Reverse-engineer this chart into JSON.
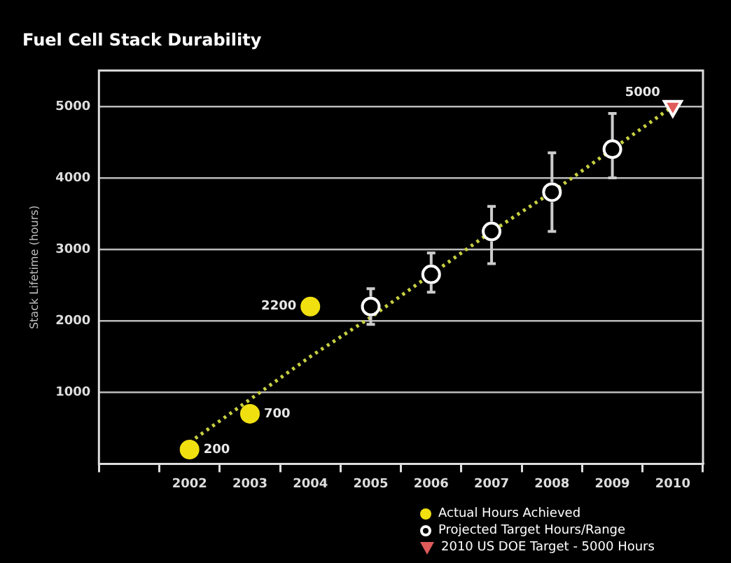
{
  "chart_data": {
    "type": "scatter",
    "title": "Fuel Cell Stack Durability",
    "ylabel": "Stack Lifetime (hours)",
    "categories": [
      null,
      "2002",
      "2003",
      "2004",
      "2005",
      "2006",
      "2007",
      "2008",
      "2009",
      "2010"
    ],
    "ylim": [
      0,
      5500
    ],
    "yticks": [
      1000,
      2000,
      3000,
      4000,
      5000
    ],
    "grid": "y",
    "legend": "bottom right",
    "series": [
      {
        "type": "line",
        "color": "#c8d040",
        "values": [
          null,
          300,
          900,
          1500,
          2050,
          2650,
          3250,
          3800,
          4400,
          5000
        ],
        "line_style": "dotted",
        "marker": "none"
      },
      {
        "name": "Actual Hours Achieved",
        "color": "#f0e010",
        "marker": "circle",
        "values": [
          null,
          200,
          700,
          2200,
          null,
          null,
          null,
          null,
          null,
          null
        ],
        "value_labels": [
          null,
          "200",
          "700",
          "2200",
          null,
          null,
          null,
          null,
          null,
          null
        ]
      },
      {
        "name": "Projected Target Hours/Range",
        "color": "#ffffff",
        "marker": "circle",
        "values": [
          null,
          null,
          null,
          null,
          2200,
          2650,
          3250,
          3800,
          4400,
          null
        ],
        "errors": [
          null,
          null,
          null,
          null,
          [
            1950,
            2450
          ],
          [
            2400,
            2950
          ],
          [
            2800,
            3600
          ],
          [
            3250,
            4350
          ],
          [
            4000,
            4900
          ],
          null
        ]
      },
      {
        "name": "2010 US DOE Target - 5000 Hours",
        "color": "#e05a5a",
        "marker": "triangle",
        "values": [
          null,
          null,
          null,
          null,
          null,
          null,
          null,
          null,
          null,
          5000
        ],
        "value_labels": [
          null,
          null,
          null,
          null,
          null,
          null,
          null,
          null,
          null,
          "5000"
        ]
      }
    ]
  }
}
